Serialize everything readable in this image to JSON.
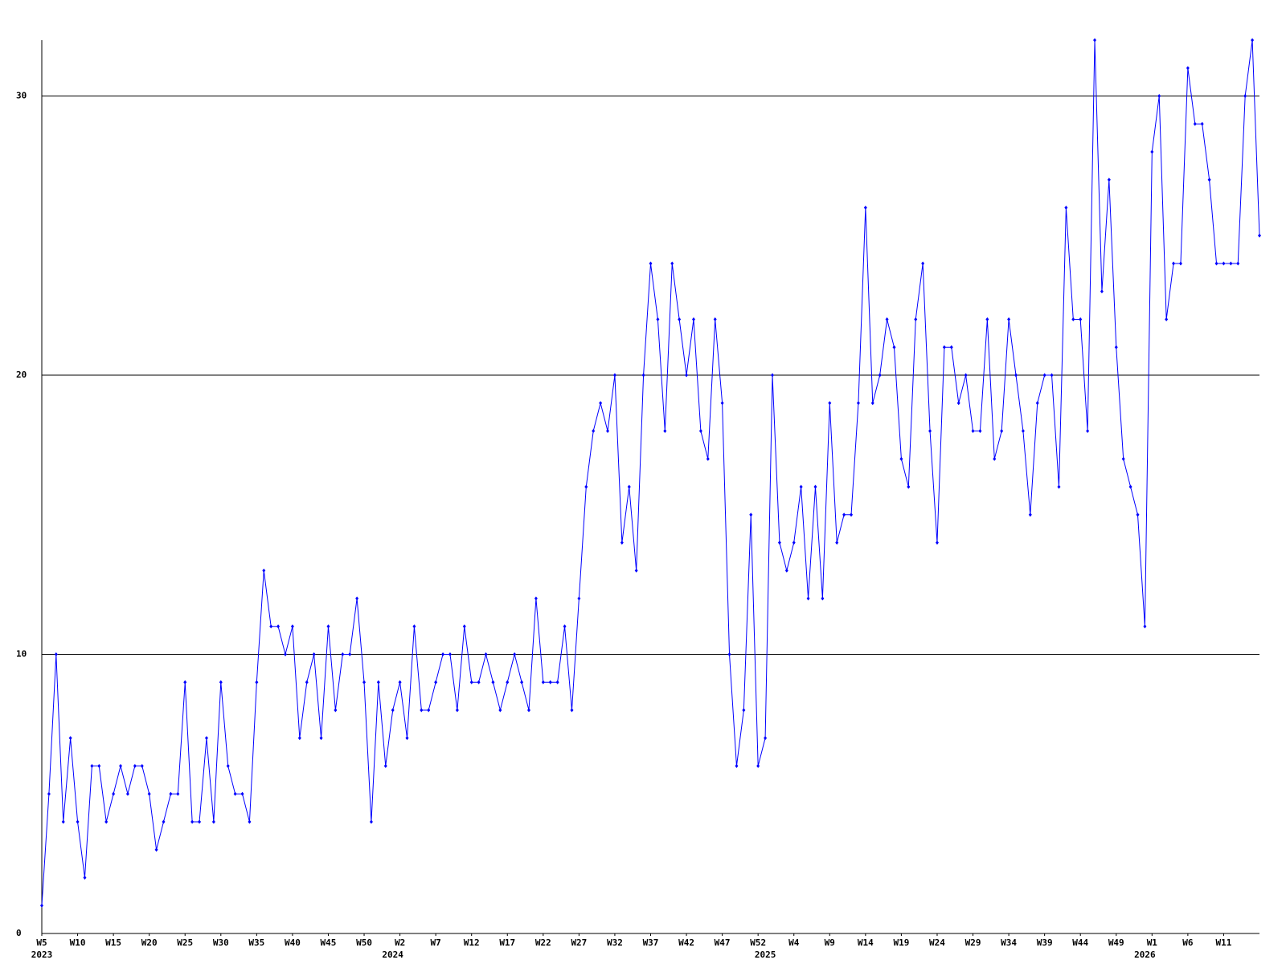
{
  "chart_data": {
    "type": "line",
    "categories": [
      "W5",
      null,
      null,
      null,
      null,
      "W10",
      null,
      null,
      null,
      null,
      "W15",
      null,
      null,
      null,
      null,
      "W20",
      null,
      null,
      null,
      null,
      "W25",
      null,
      null,
      null,
      null,
      "W30",
      null,
      null,
      null,
      null,
      "W35",
      null,
      null,
      null,
      null,
      "W40",
      null,
      null,
      null,
      null,
      "W45",
      null,
      null,
      null,
      null,
      "W50",
      null,
      null,
      null,
      null,
      "W2",
      null,
      null,
      null,
      null,
      "W7",
      null,
      null,
      null,
      null,
      "W12",
      null,
      null,
      null,
      null,
      "W17",
      null,
      null,
      null,
      null,
      "W22",
      null,
      null,
      null,
      null,
      "W27",
      null,
      null,
      null,
      null,
      "W32",
      null,
      null,
      null,
      null,
      "W37",
      null,
      null,
      null,
      null,
      "W42",
      null,
      null,
      null,
      null,
      "W47",
      null,
      null,
      null,
      null,
      "W52",
      null,
      null,
      null,
      null,
      "W4",
      null,
      null,
      null,
      null,
      "W9",
      null,
      null,
      null,
      null,
      "W14",
      null,
      null,
      null,
      null,
      "W19",
      null,
      null,
      null,
      null,
      "W24",
      null,
      null,
      null,
      null,
      "W29",
      null,
      null,
      null,
      null,
      "W34",
      null,
      null,
      null,
      null,
      "W39",
      null,
      null,
      null,
      null,
      "W44",
      null,
      null,
      null,
      null,
      "W49",
      null,
      null,
      null,
      null,
      "W1",
      null,
      null,
      null,
      null,
      "W6",
      null,
      null,
      null,
      null,
      "W11",
      null,
      null,
      null,
      null,
      null
    ],
    "category_years": [
      "2023",
      null,
      null,
      null,
      null,
      null,
      null,
      null,
      null,
      null,
      null,
      null,
      null,
      null,
      null,
      null,
      null,
      null,
      null,
      null,
      null,
      null,
      null,
      null,
      null,
      null,
      null,
      null,
      null,
      null,
      null,
      null,
      null,
      null,
      null,
      null,
      null,
      null,
      null,
      null,
      null,
      null,
      null,
      null,
      null,
      null,
      null,
      null,
      null,
      "2024",
      null,
      null,
      null,
      null,
      null,
      null,
      null,
      null,
      null,
      null,
      null,
      null,
      null,
      null,
      null,
      null,
      null,
      null,
      null,
      null,
      null,
      null,
      null,
      null,
      null,
      null,
      null,
      null,
      null,
      null,
      null,
      null,
      null,
      null,
      null,
      null,
      null,
      null,
      null,
      null,
      null,
      null,
      null,
      null,
      null,
      null,
      null,
      null,
      null,
      null,
      null,
      "2025",
      null,
      null,
      null,
      null,
      null,
      null,
      null,
      null,
      null,
      null,
      null,
      null,
      null,
      null,
      null,
      null,
      null,
      null,
      null,
      null,
      null,
      null,
      null,
      null,
      null,
      null,
      null,
      null,
      null,
      null,
      null,
      null,
      null,
      null,
      null,
      null,
      null,
      null,
      null,
      null,
      null,
      null,
      null,
      null,
      null,
      null,
      null,
      null,
      null,
      null,
      null,
      null,
      "2026",
      null,
      null,
      null,
      null,
      null,
      null,
      null,
      null,
      null,
      null,
      null,
      null,
      null,
      null,
      null,
      null
    ],
    "series": [
      {
        "color": "#0000ff",
        "values": [
          1,
          5,
          10,
          4,
          7,
          4,
          2,
          6,
          6,
          4,
          5,
          6,
          5,
          6,
          6,
          5,
          3,
          4,
          5,
          5,
          9,
          4,
          4,
          7,
          4,
          9,
          6,
          5,
          5,
          4,
          9,
          13,
          11,
          11,
          10,
          11,
          7,
          9,
          10,
          7,
          11,
          8,
          10,
          10,
          12,
          9,
          4,
          9,
          6,
          8,
          9,
          7,
          11,
          8,
          8,
          9,
          10,
          10,
          8,
          11,
          9,
          9,
          10,
          9,
          8,
          9,
          10,
          9,
          8,
          12,
          9,
          9,
          9,
          11,
          8,
          12,
          16,
          18,
          19,
          18,
          20,
          14,
          16,
          13,
          20,
          24,
          22,
          18,
          24,
          22,
          20,
          22,
          18,
          17,
          22,
          19,
          10,
          6,
          8,
          15,
          6,
          7,
          20,
          14,
          13,
          14,
          16,
          12,
          16,
          12,
          19,
          14,
          15,
          15,
          19,
          26,
          19,
          20,
          22,
          21,
          17,
          16,
          22,
          24,
          18,
          14,
          21,
          21,
          19,
          20,
          18,
          18,
          22,
          17,
          18,
          22,
          20,
          18,
          15,
          19,
          20,
          20,
          16,
          26,
          22,
          22,
          18,
          32,
          23,
          27,
          21,
          17,
          16,
          15,
          11,
          28,
          30,
          22,
          24,
          24,
          31,
          29,
          29,
          27,
          24,
          24,
          24,
          24,
          30,
          32,
          25
        ]
      }
    ],
    "ylim": [
      0,
      32
    ],
    "yticks": [
      0,
      10,
      20,
      30
    ],
    "grid": true
  }
}
